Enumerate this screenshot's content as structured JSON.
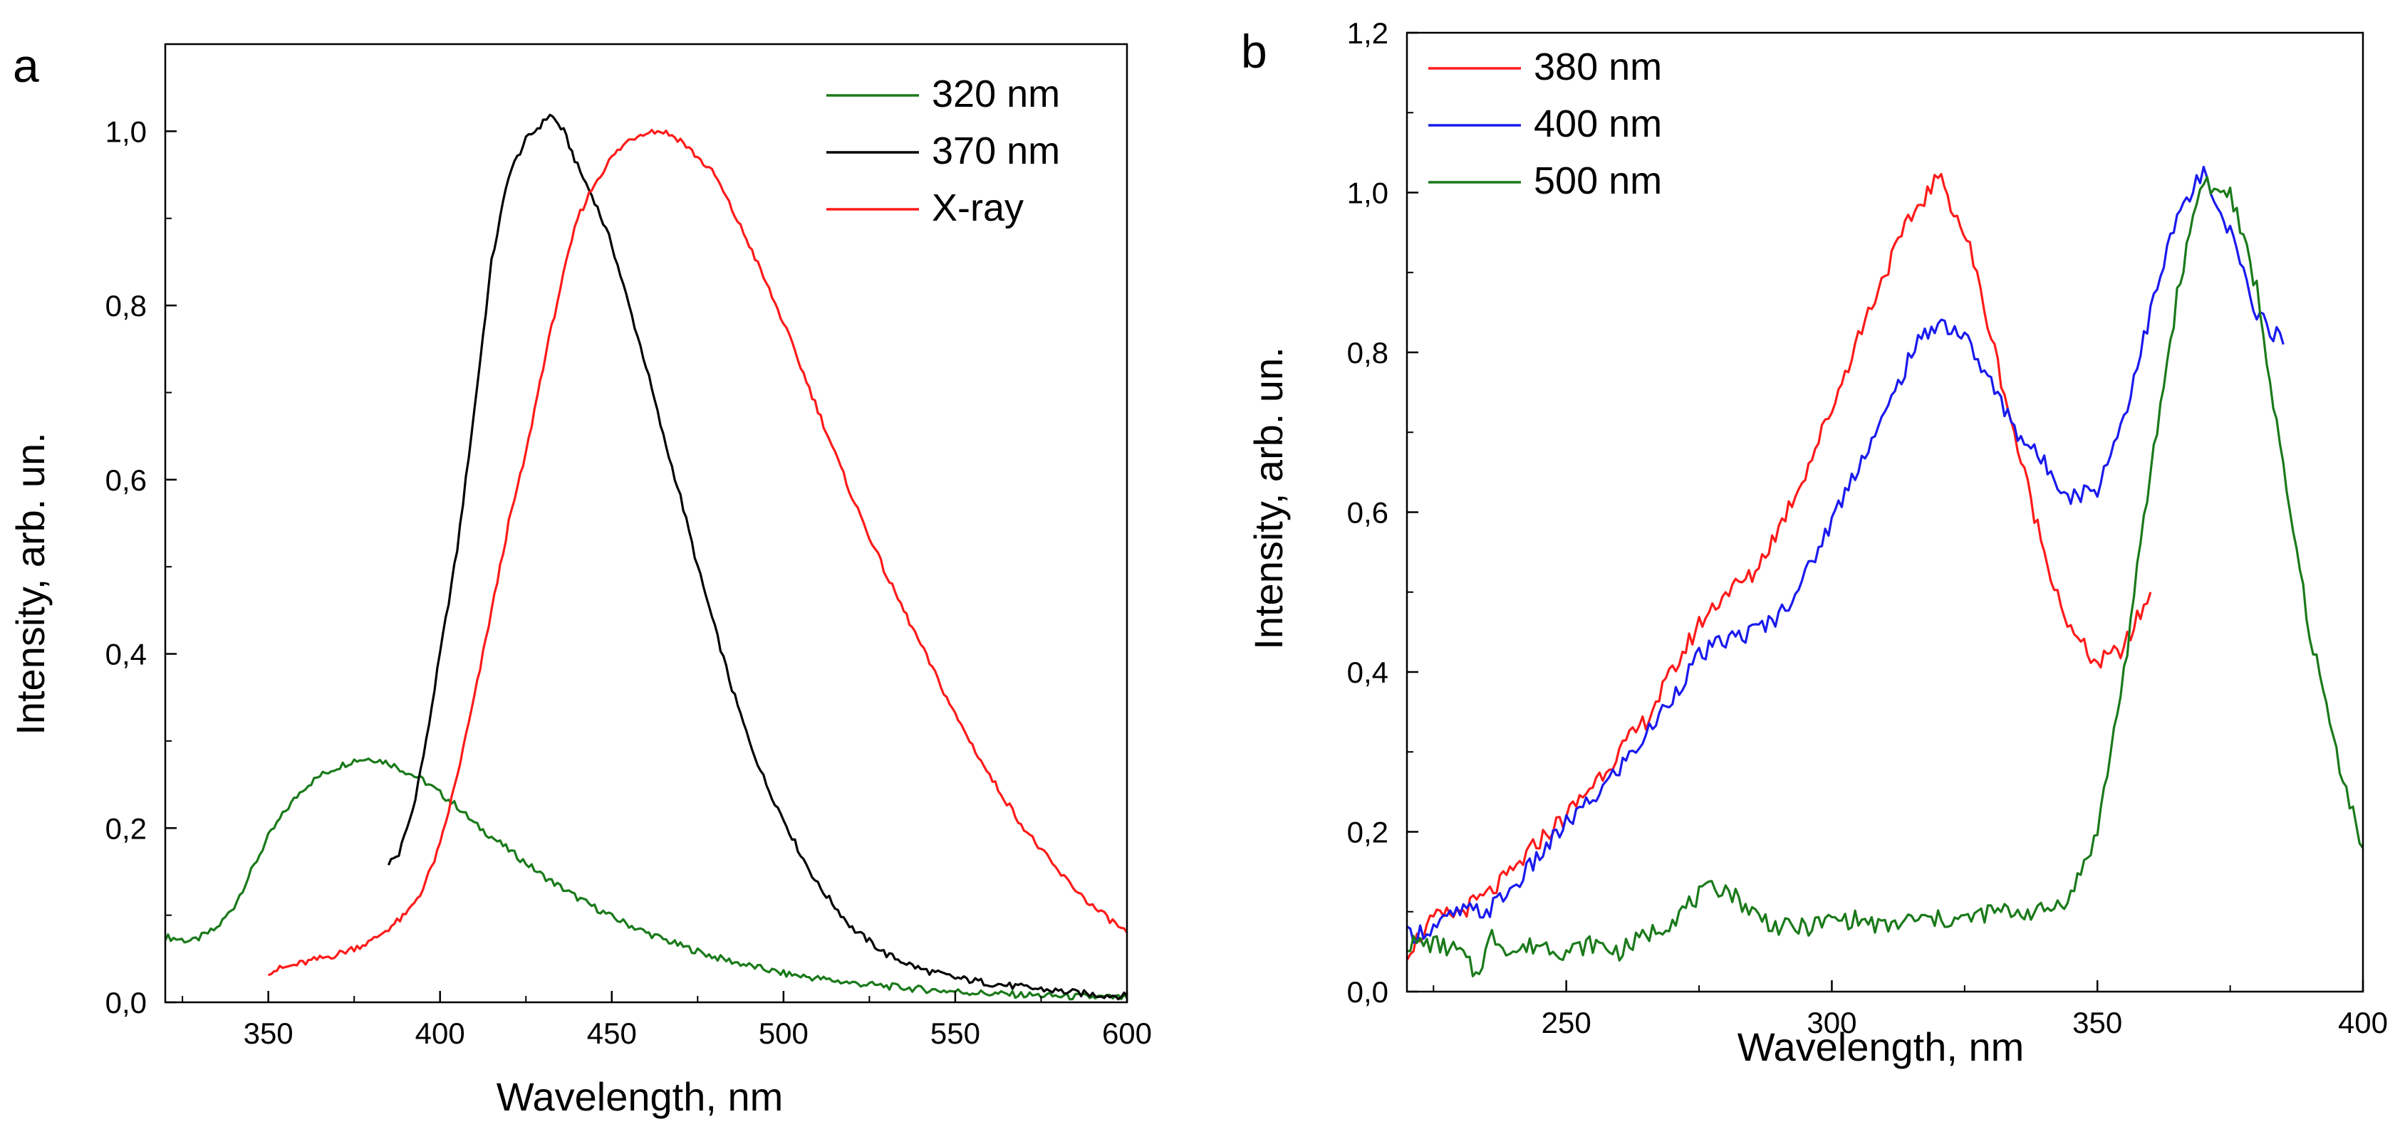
{
  "chart_data": [
    {
      "panel_label": "a",
      "type": "line",
      "xlabel": "Wavelength, nm",
      "ylabel": "Intensity, arb. un.",
      "xlim": [
        320,
        600
      ],
      "ylim": [
        0,
        1.1
      ],
      "x_ticks": [
        350,
        400,
        450,
        500,
        550,
        600
      ],
      "x_tick_labels": [
        "350",
        "400",
        "450",
        "500",
        "550",
        "600"
      ],
      "y_ticks": [
        0,
        0.2,
        0.4,
        0.6,
        0.8,
        1.0
      ],
      "y_tick_labels": [
        "0,0",
        "0,2",
        "0,4",
        "0,6",
        "0,8",
        "1,0"
      ],
      "legend_position": "top-right",
      "series": [
        {
          "name": "320 nm",
          "color": "#1a7a1a",
          "x": [
            320,
            328,
            335,
            340,
            345,
            350,
            355,
            360,
            365,
            370,
            375,
            380,
            385,
            390,
            395,
            400,
            405,
            410,
            420,
            430,
            440,
            450,
            460,
            470,
            480,
            490,
            500,
            520,
            540,
            560,
            580,
            600
          ],
          "y": [
            0.075,
            0.07,
            0.085,
            0.11,
            0.15,
            0.19,
            0.22,
            0.245,
            0.26,
            0.27,
            0.278,
            0.28,
            0.275,
            0.265,
            0.255,
            0.24,
            0.225,
            0.205,
            0.175,
            0.145,
            0.12,
            0.098,
            0.08,
            0.065,
            0.052,
            0.042,
            0.033,
            0.022,
            0.015,
            0.01,
            0.007,
            0.005
          ]
        },
        {
          "name": "370 nm",
          "color": "#000000",
          "x": [
            385,
            388,
            392,
            396,
            400,
            405,
            410,
            415,
            420,
            425,
            430,
            432,
            436,
            440,
            445,
            450,
            455,
            460,
            465,
            470,
            475,
            480,
            485,
            490,
            495,
            500,
            505,
            510,
            515,
            520,
            530,
            540,
            550,
            560,
            570,
            580,
            590,
            600
          ],
          "y": [
            0.16,
            0.17,
            0.22,
            0.3,
            0.4,
            0.52,
            0.68,
            0.85,
            0.95,
            0.99,
            1.01,
            1.02,
            1.0,
            0.96,
            0.92,
            0.87,
            0.8,
            0.73,
            0.65,
            0.58,
            0.5,
            0.43,
            0.36,
            0.3,
            0.25,
            0.21,
            0.17,
            0.135,
            0.11,
            0.085,
            0.055,
            0.038,
            0.028,
            0.022,
            0.017,
            0.013,
            0.009,
            0.007
          ]
        },
        {
          "name": "X-ray",
          "color": "#ff1a1a",
          "x": [
            350,
            360,
            370,
            380,
            390,
            395,
            400,
            405,
            410,
            415,
            420,
            425,
            430,
            435,
            440,
            445,
            450,
            455,
            460,
            465,
            470,
            475,
            480,
            490,
            500,
            510,
            520,
            530,
            540,
            550,
            560,
            570,
            580,
            590,
            600
          ],
          "y": [
            0.035,
            0.045,
            0.055,
            0.07,
            0.1,
            0.13,
            0.18,
            0.26,
            0.35,
            0.45,
            0.55,
            0.63,
            0.73,
            0.82,
            0.9,
            0.94,
            0.97,
            0.99,
            1.0,
            1.0,
            0.99,
            0.97,
            0.95,
            0.87,
            0.78,
            0.68,
            0.58,
            0.49,
            0.41,
            0.33,
            0.26,
            0.2,
            0.15,
            0.11,
            0.08
          ]
        }
      ]
    },
    {
      "panel_label": "b",
      "type": "line",
      "xlabel": "Wavelength, nm",
      "ylabel": "Intensity, arb. un.",
      "xlim": [
        220,
        400
      ],
      "ylim": [
        0,
        1.2
      ],
      "x_ticks": [
        250,
        300,
        350,
        400
      ],
      "x_tick_labels": [
        "250",
        "300",
        "350",
        "400"
      ],
      "y_ticks": [
        0,
        0.2,
        0.4,
        0.6,
        0.8,
        1.0,
        1.2
      ],
      "y_tick_labels": [
        "0,0",
        "0,2",
        "0,4",
        "0,6",
        "0,8",
        "1,0",
        "1,2"
      ],
      "legend_position": "top-left",
      "series": [
        {
          "name": "380 nm",
          "color": "#ff1a1a",
          "x": [
            220,
            225,
            230,
            235,
            240,
            245,
            250,
            255,
            260,
            265,
            270,
            275,
            280,
            285,
            290,
            295,
            300,
            305,
            310,
            315,
            318,
            320,
            323,
            326,
            330,
            335,
            340,
            345,
            350,
            355,
            360
          ],
          "y": [
            0.05,
            0.09,
            0.1,
            0.12,
            0.15,
            0.19,
            0.22,
            0.26,
            0.3,
            0.34,
            0.4,
            0.46,
            0.5,
            0.52,
            0.58,
            0.65,
            0.73,
            0.82,
            0.9,
            0.97,
            1.0,
            1.02,
            0.98,
            0.93,
            0.82,
            0.68,
            0.55,
            0.45,
            0.41,
            0.43,
            0.5
          ]
        },
        {
          "name": "400 nm",
          "color": "#1a1aee",
          "x": [
            220,
            225,
            230,
            235,
            240,
            245,
            250,
            255,
            260,
            265,
            270,
            275,
            280,
            285,
            290,
            295,
            300,
            305,
            310,
            315,
            320,
            325,
            330,
            335,
            340,
            345,
            350,
            355,
            360,
            365,
            368,
            370,
            372,
            375,
            380,
            385
          ],
          "y": [
            0.07,
            0.08,
            0.1,
            0.1,
            0.13,
            0.17,
            0.21,
            0.24,
            0.28,
            0.32,
            0.37,
            0.42,
            0.44,
            0.45,
            0.47,
            0.52,
            0.59,
            0.66,
            0.72,
            0.8,
            0.84,
            0.82,
            0.76,
            0.7,
            0.66,
            0.62,
            0.63,
            0.72,
            0.85,
            0.97,
            1.0,
            1.03,
            0.98,
            0.95,
            0.85,
            0.81
          ]
        },
        {
          "name": "500 nm",
          "color": "#1a7a1a",
          "x": [
            220,
            225,
            230,
            233,
            236,
            240,
            245,
            250,
            255,
            260,
            265,
            270,
            275,
            278,
            280,
            285,
            290,
            295,
            300,
            305,
            310,
            315,
            320,
            325,
            330,
            335,
            340,
            345,
            350,
            355,
            360,
            365,
            368,
            370,
            372,
            375,
            380,
            385,
            390,
            395,
            400
          ],
          "y": [
            0.06,
            0.06,
            0.05,
            0.02,
            0.07,
            0.05,
            0.06,
            0.05,
            0.06,
            0.05,
            0.07,
            0.09,
            0.12,
            0.13,
            0.13,
            0.1,
            0.08,
            0.08,
            0.09,
            0.09,
            0.08,
            0.09,
            0.09,
            0.09,
            0.1,
            0.1,
            0.1,
            0.12,
            0.2,
            0.4,
            0.65,
            0.87,
            0.97,
            1.02,
            1.0,
            1.0,
            0.88,
            0.65,
            0.45,
            0.3,
            0.18
          ]
        }
      ]
    }
  ]
}
